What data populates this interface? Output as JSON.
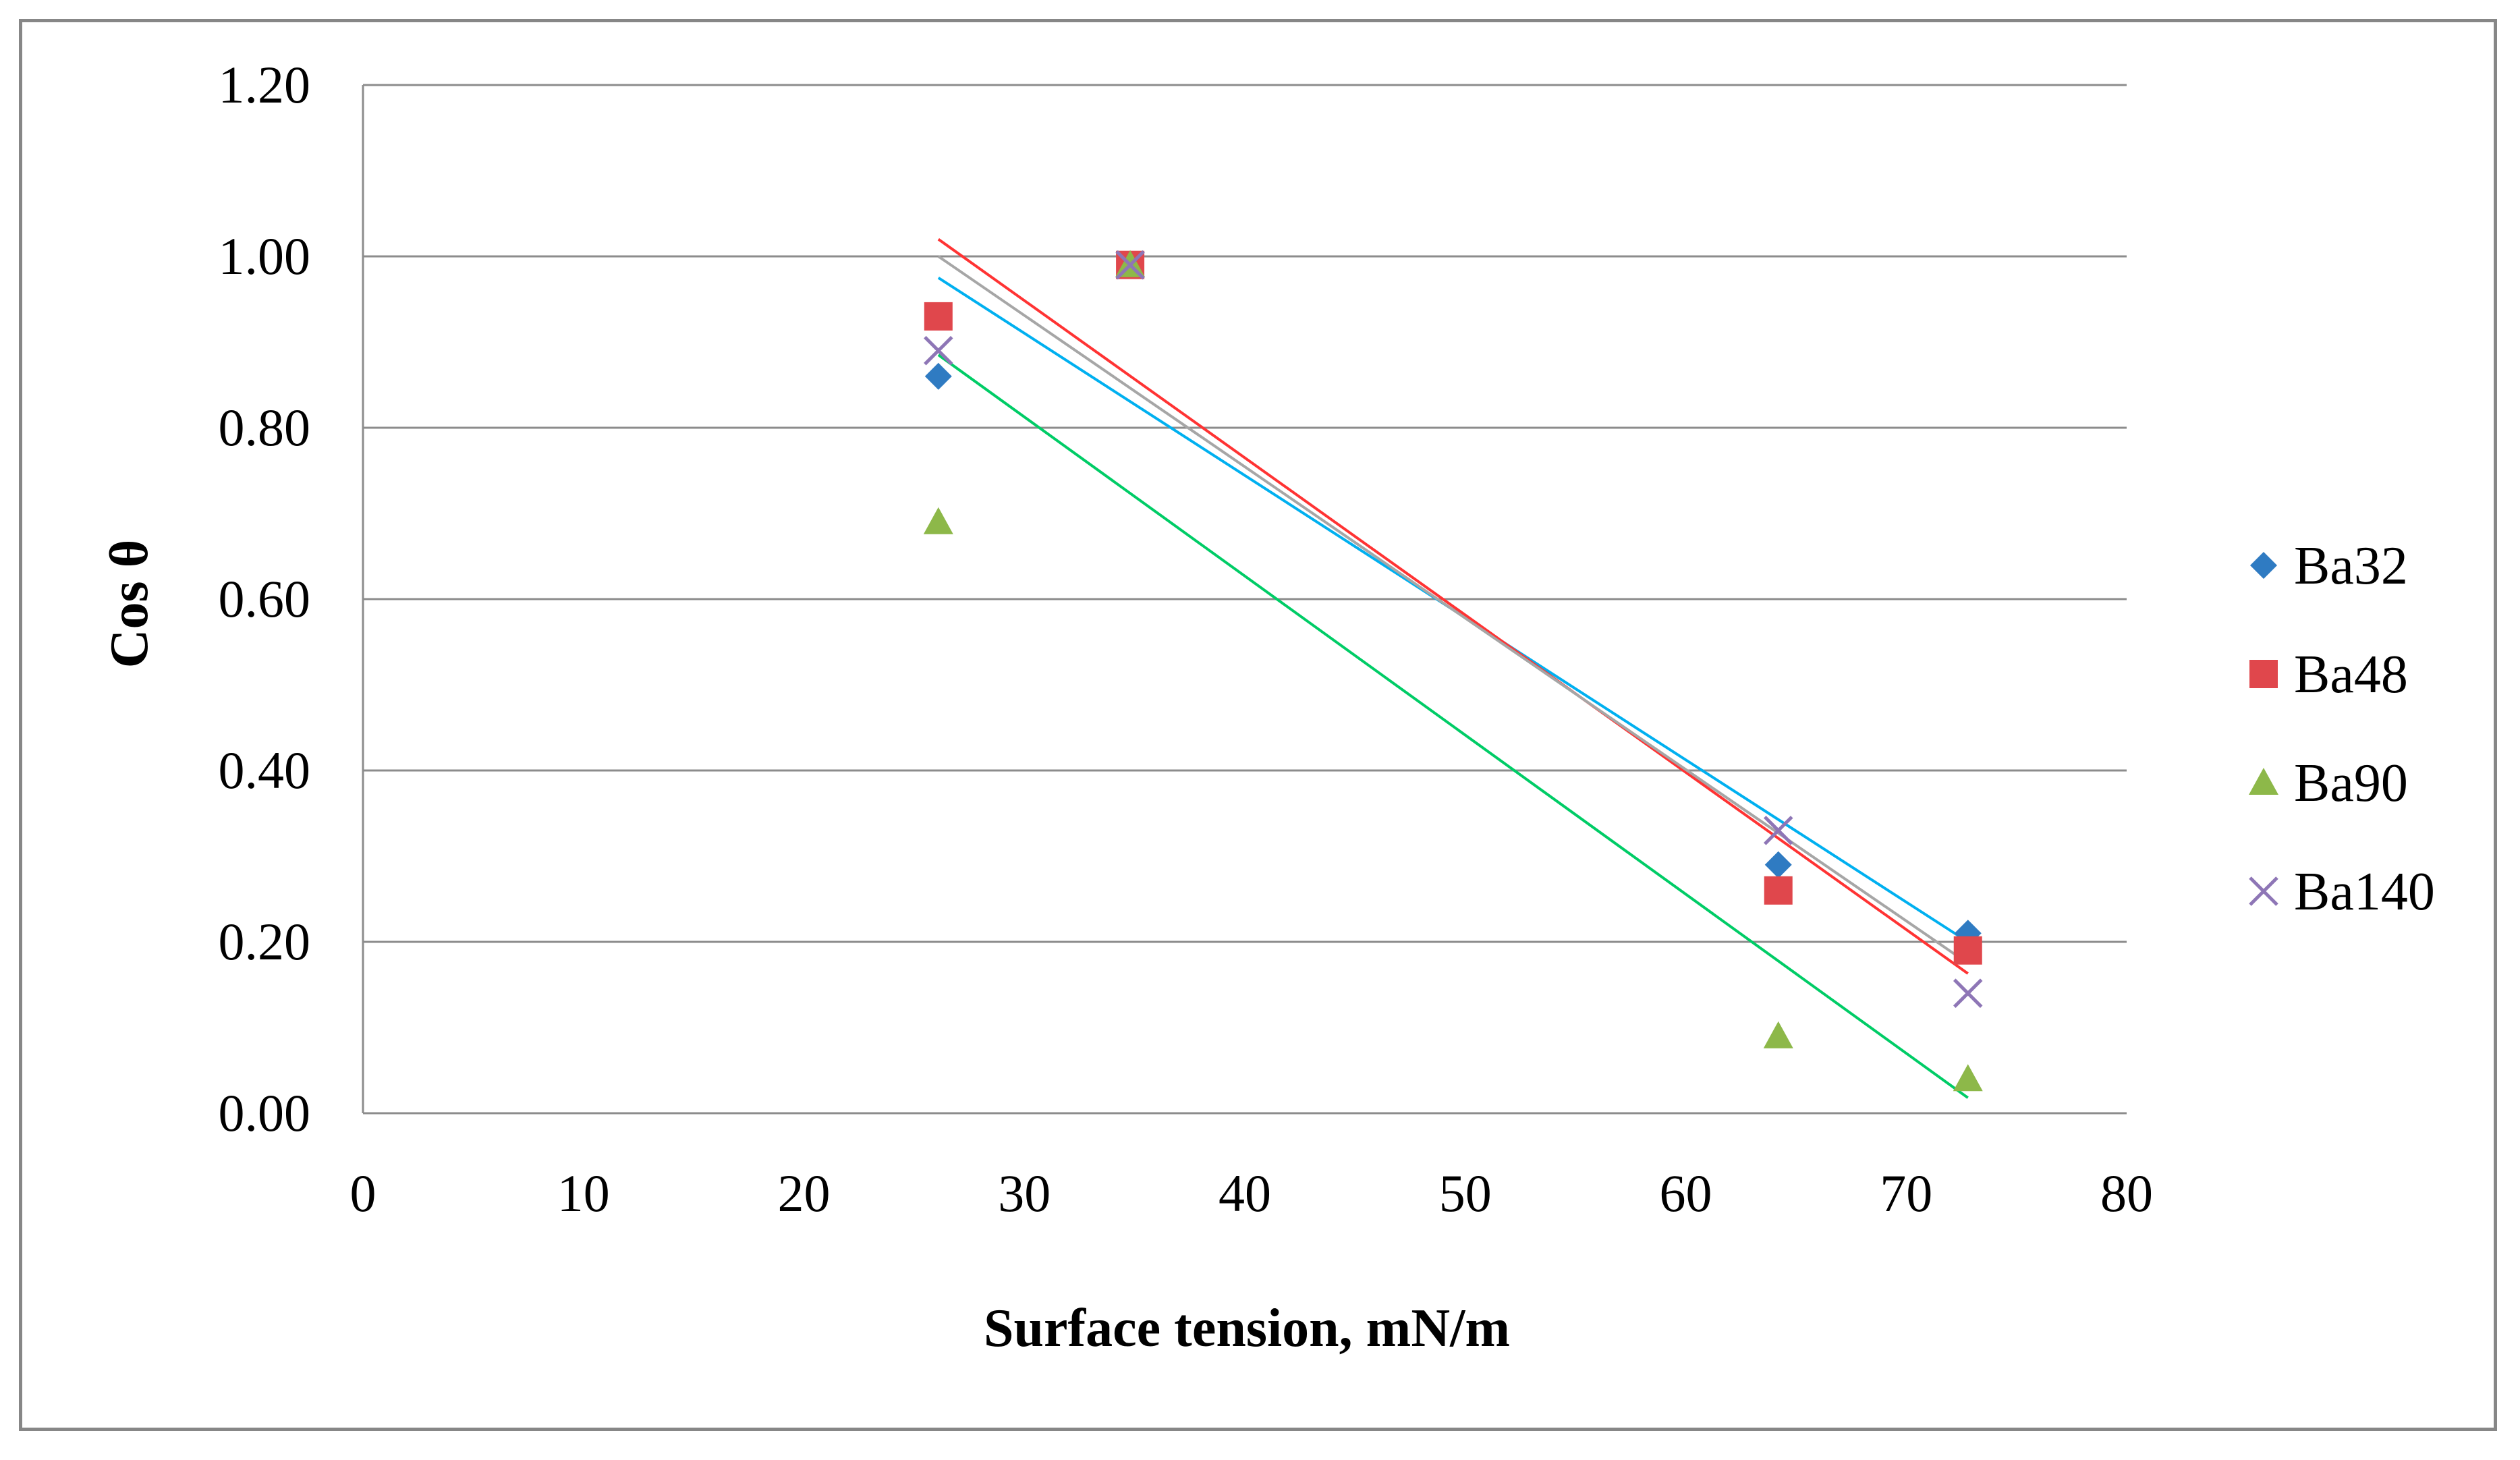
{
  "chart_data": {
    "type": "scatter",
    "title": "",
    "xlabel": "Surface tension, mN/m",
    "ylabel": "Cos θ",
    "xlim": [
      0,
      80
    ],
    "ylim": [
      0,
      1.2
    ],
    "x_ticks": [
      0,
      10,
      20,
      30,
      40,
      50,
      60,
      70,
      80
    ],
    "y_ticks": [
      0,
      0.2,
      0.4,
      0.6,
      0.8,
      1.0,
      1.2
    ],
    "y_tick_format": "0.00",
    "grid": "horizontal",
    "legend_position": "right",
    "series": [
      {
        "name": "Ba32",
        "marker": "diamond",
        "color": "#2F7BC2",
        "points": [
          [
            26.1,
            0.86
          ],
          [
            34.8,
            0.99
          ],
          [
            64.2,
            0.29
          ],
          [
            72.8,
            0.21
          ]
        ],
        "trendline": {
          "color": "#00B0F0",
          "x": [
            26.1,
            72.8
          ],
          "y": [
            0.975,
            0.2
          ]
        }
      },
      {
        "name": "Ba48",
        "marker": "square",
        "color": "#E0474C",
        "points": [
          [
            26.1,
            0.93
          ],
          [
            34.8,
            0.99
          ],
          [
            64.2,
            0.26
          ],
          [
            72.8,
            0.19
          ]
        ],
        "trendline": {
          "color": "#FF3333",
          "x": [
            26.1,
            72.8
          ],
          "y": [
            1.02,
            0.163
          ]
        }
      },
      {
        "name": "Ba90",
        "marker": "triangle",
        "color": "#8DB849",
        "points": [
          [
            26.1,
            0.69
          ],
          [
            34.8,
            0.99
          ],
          [
            64.2,
            0.09
          ],
          [
            72.8,
            0.04
          ]
        ],
        "trendline": {
          "color": "#00CC66",
          "x": [
            26.1,
            72.8
          ],
          "y": [
            0.885,
            0.018
          ]
        }
      },
      {
        "name": "Ba140",
        "marker": "x",
        "color": "#8E76B6",
        "points": [
          [
            26.1,
            0.89
          ],
          [
            34.8,
            0.99
          ],
          [
            64.2,
            0.33
          ],
          [
            72.8,
            0.14
          ]
        ],
        "trendline": {
          "color": "#A6A6A6",
          "x": [
            26.1,
            72.8
          ],
          "y": [
            1.0,
            0.175
          ]
        }
      }
    ]
  }
}
